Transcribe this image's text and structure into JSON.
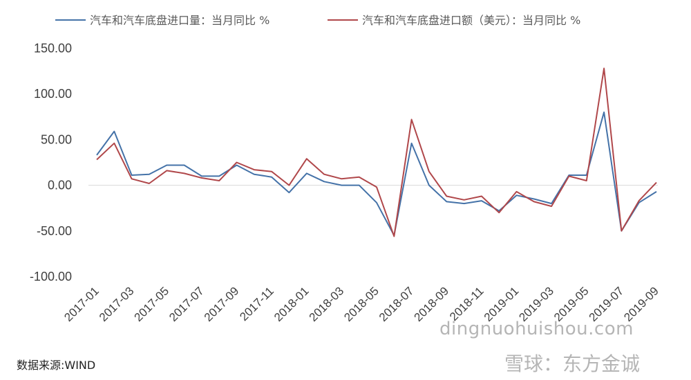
{
  "chart_data": {
    "type": "line",
    "title": "",
    "xlabel": "",
    "ylabel": "",
    "ylim": [
      -100,
      150
    ],
    "yticks": [
      "150.00",
      "100.00",
      "50.00",
      "0.00",
      "-50.00",
      "-100.00"
    ],
    "ytick_values": [
      150,
      100,
      50,
      0,
      -50,
      -100
    ],
    "grid": false,
    "legend_position": "top",
    "categories": [
      "2017-01",
      "2017-02",
      "2017-03",
      "2017-04",
      "2017-05",
      "2017-06",
      "2017-07",
      "2017-08",
      "2017-09",
      "2017-10",
      "2017-11",
      "2017-12",
      "2018-01",
      "2018-02",
      "2018-03",
      "2018-04",
      "2018-05",
      "2018-06",
      "2018-07",
      "2018-08",
      "2018-09",
      "2018-10",
      "2018-11",
      "2018-12",
      "2019-01",
      "2019-02",
      "2019-03",
      "2019-04",
      "2019-05",
      "2019-06",
      "2019-07",
      "2019-08",
      "2019-09"
    ],
    "xtick_labels": [
      "2017-01",
      "2017-03",
      "2017-05",
      "2017-07",
      "2017-09",
      "2017-11",
      "2018-01",
      "2018-03",
      "2018-05",
      "2018-07",
      "2018-09",
      "2018-11",
      "2019-01",
      "2019-03",
      "2019-05",
      "2019-07",
      "2019-09"
    ],
    "series": [
      {
        "name": "汽车和汽车底盘进口量：当月同比 %",
        "color": "#4472a8",
        "values": [
          33,
          59,
          11,
          12,
          22,
          22,
          10,
          10,
          22,
          12,
          9,
          -8,
          13,
          4,
          0,
          0,
          -19,
          -55,
          46,
          0,
          -18,
          -20,
          -17,
          -28,
          -11,
          -15,
          -20,
          11,
          11,
          80,
          -50,
          -19,
          -7
        ]
      },
      {
        "name": "汽车和汽车底盘进口额（美元）：当月同比 %",
        "color": "#b0474a",
        "values": [
          28,
          46,
          7,
          2,
          16,
          13,
          8,
          5,
          25,
          17,
          15,
          0,
          29,
          12,
          7,
          9,
          -2,
          -56,
          72,
          15,
          -12,
          -16,
          -12,
          -30,
          -7,
          -18,
          -23,
          10,
          5,
          128,
          -50,
          -17,
          3
        ]
      }
    ]
  },
  "source": "数据来源:WIND",
  "watermark": {
    "site": "dingnuohuishou.com",
    "brand": "雪球：东方金诚"
  }
}
